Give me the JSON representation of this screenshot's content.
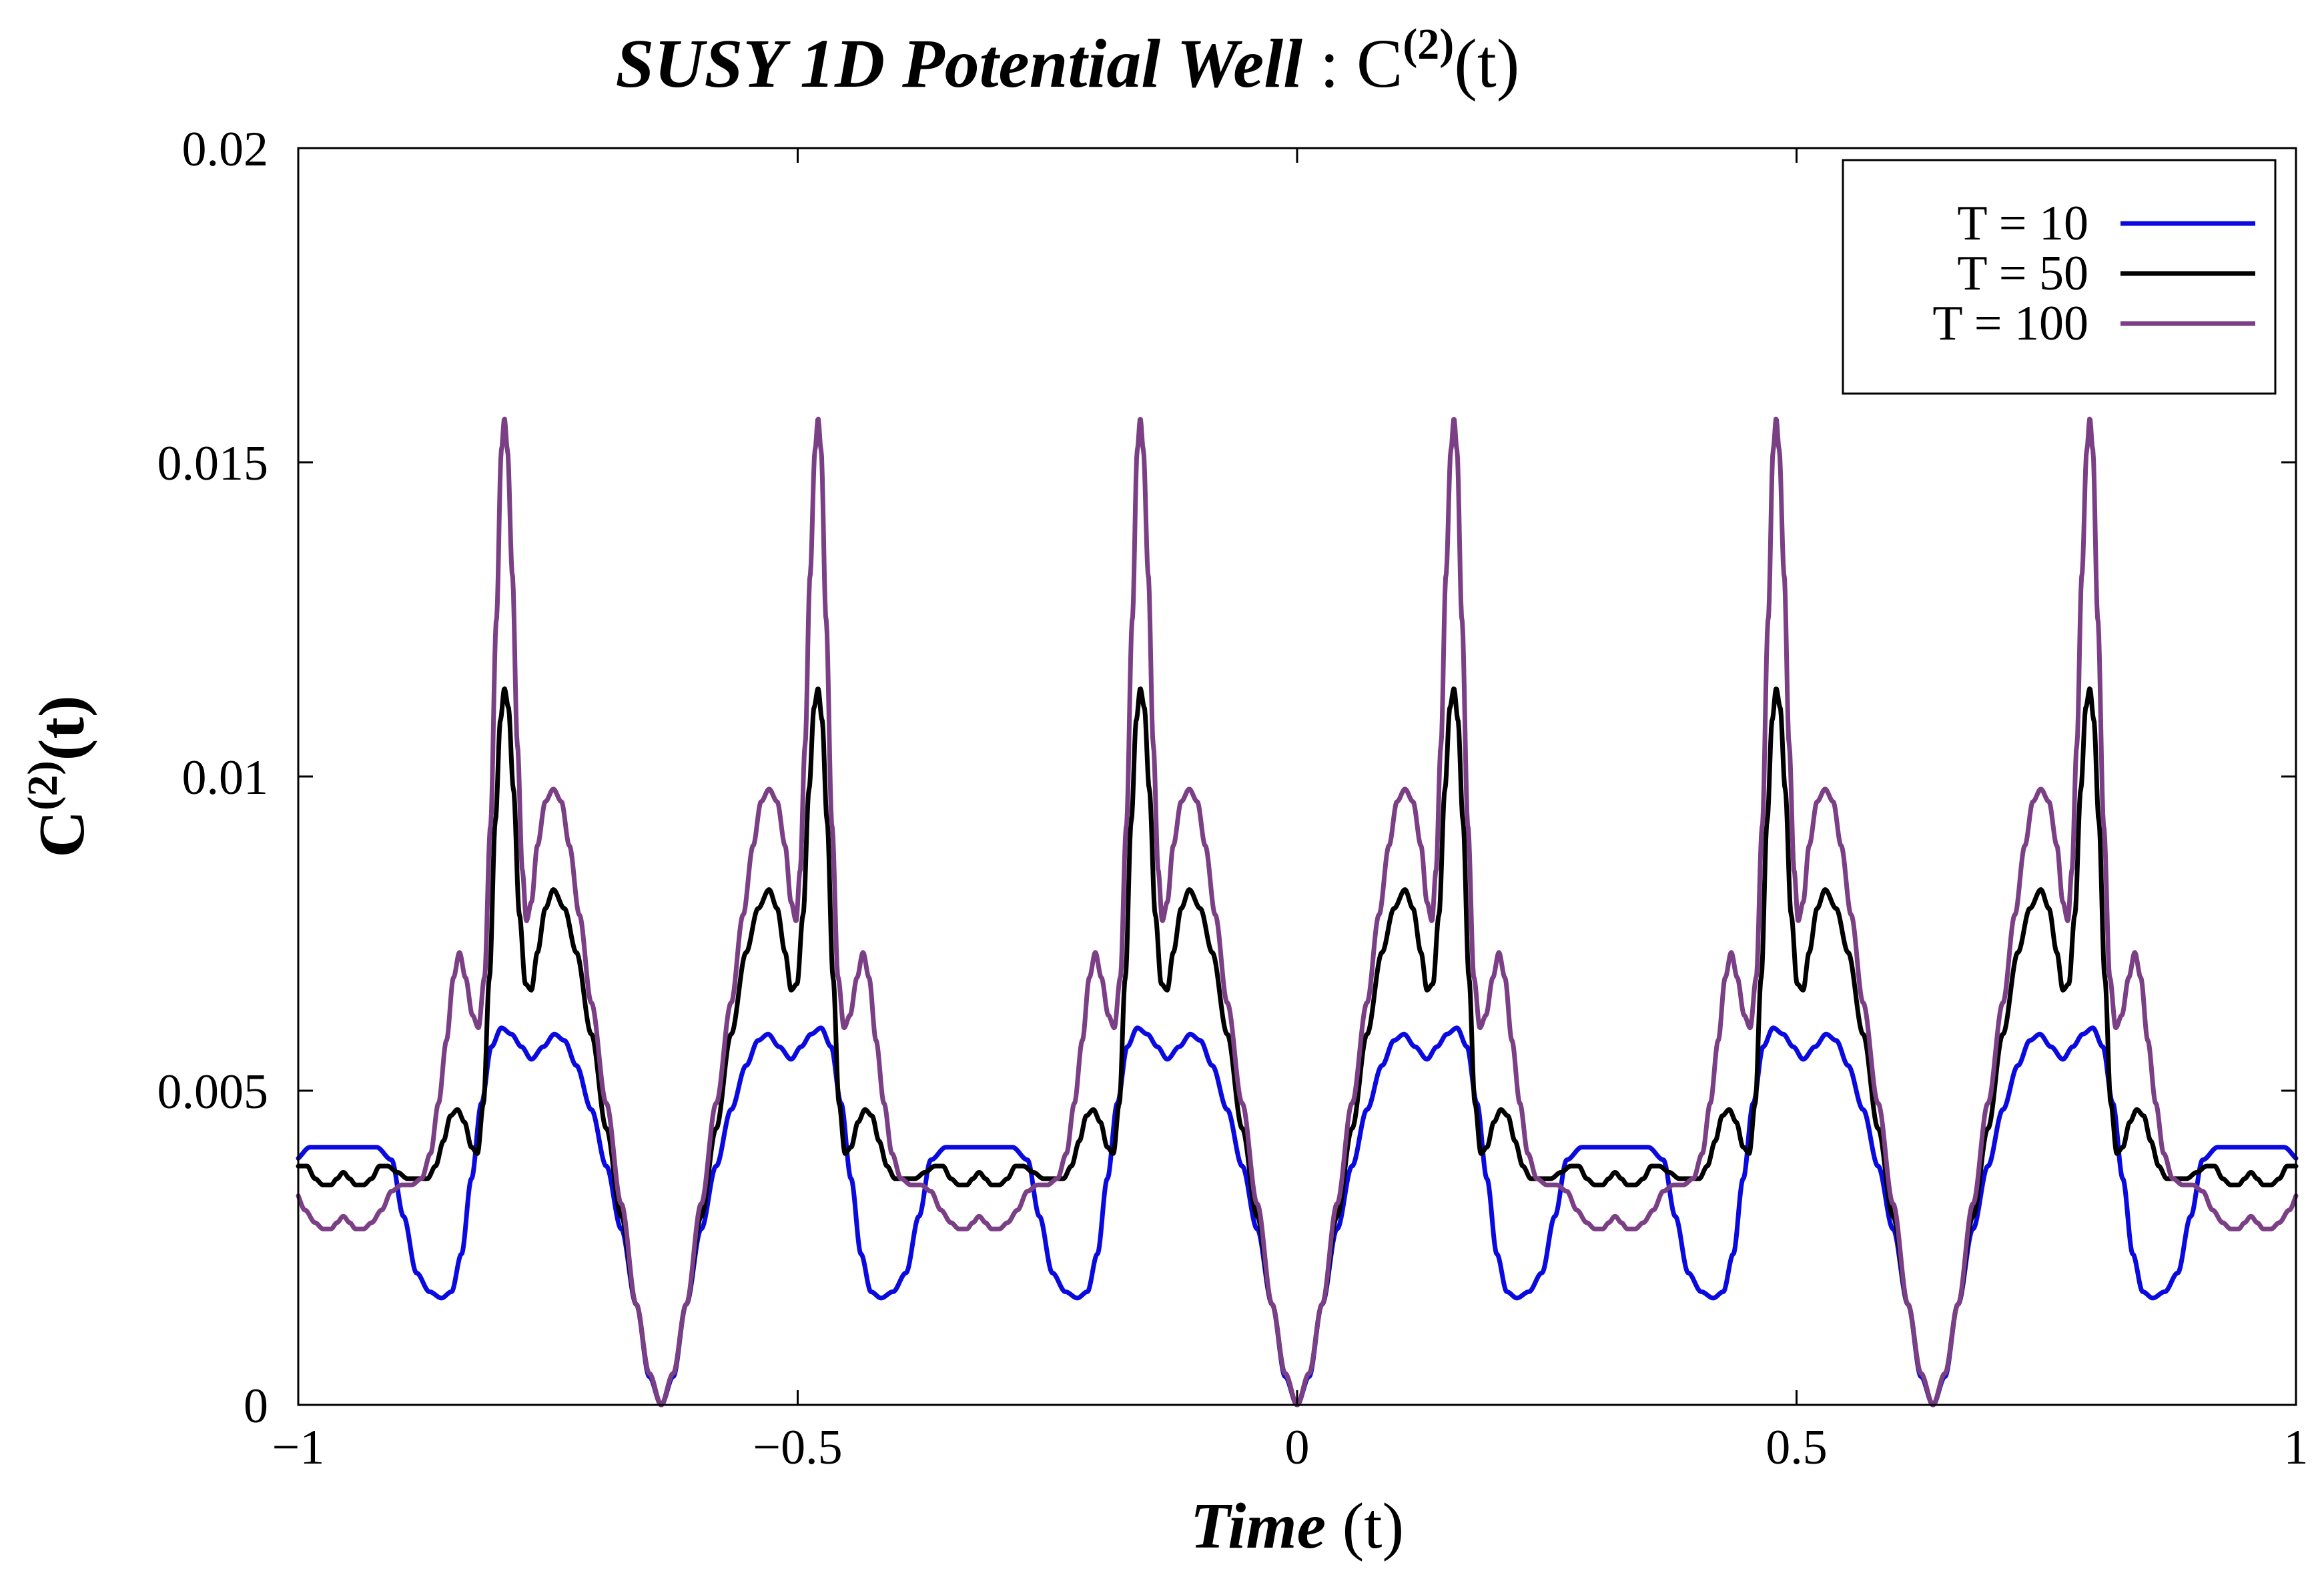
{
  "chart_data": {
    "type": "line",
    "title": {
      "italic": "SUSY 1D Potential Well",
      "sep": " : ",
      "base": "C",
      "sup": "(2)",
      "tail": "(t)"
    },
    "xlabel": {
      "italic": "Time",
      "tail": " (t)"
    },
    "ylabel": {
      "base": "C",
      "sup": "(2)",
      "tail": "(t)"
    },
    "xlim": [
      -1,
      1
    ],
    "ylim": [
      0,
      0.02
    ],
    "xticks": [
      {
        "value": -1,
        "label": "−1"
      },
      {
        "value": -0.5,
        "label": "−0.5"
      },
      {
        "value": 0,
        "label": "0"
      },
      {
        "value": 0.5,
        "label": "0.5"
      },
      {
        "value": 1,
        "label": "1"
      }
    ],
    "yticks": [
      {
        "value": 0,
        "label": "0"
      },
      {
        "value": 0.005,
        "label": "0.005"
      },
      {
        "value": 0.01,
        "label": "0.01"
      },
      {
        "value": 0.015,
        "label": "0.015"
      },
      {
        "value": 0.02,
        "label": "0.02"
      }
    ],
    "grid": false,
    "legend_position": "top-right",
    "period": 0.6366,
    "series": [
      {
        "name": "T = 10",
        "color": "#0a0ae0",
        "points": [
          [
            0,
            0
          ],
          [
            0.012,
            0.00045
          ],
          [
            0.025,
            0.0016
          ],
          [
            0.04,
            0.0028
          ],
          [
            0.055,
            0.0038
          ],
          [
            0.07,
            0.0047
          ],
          [
            0.085,
            0.0054
          ],
          [
            0.097,
            0.0058
          ],
          [
            0.107,
            0.0059
          ],
          [
            0.118,
            0.0057
          ],
          [
            0.13,
            0.0055
          ],
          [
            0.14,
            0.0057
          ],
          [
            0.15,
            0.0059
          ],
          [
            0.16,
            0.006
          ],
          [
            0.17,
            0.0057
          ],
          [
            0.18,
            0.0048
          ],
          [
            0.19,
            0.0036
          ],
          [
            0.2,
            0.0024
          ],
          [
            0.21,
            0.0018
          ],
          [
            0.22,
            0.0017
          ],
          [
            0.232,
            0.0018
          ],
          [
            0.245,
            0.0021
          ],
          [
            0.258,
            0.003
          ],
          [
            0.27,
            0.0039
          ],
          [
            0.285,
            0.0041
          ],
          [
            0.3,
            0.0041
          ],
          [
            0.318,
            0.0041
          ]
        ]
      },
      {
        "name": "T = 50",
        "color": "#000000",
        "points": [
          [
            0,
            0
          ],
          [
            0.012,
            0.0005
          ],
          [
            0.025,
            0.0016
          ],
          [
            0.04,
            0.003
          ],
          [
            0.055,
            0.0044
          ],
          [
            0.07,
            0.0059
          ],
          [
            0.085,
            0.0072
          ],
          [
            0.097,
            0.0079
          ],
          [
            0.108,
            0.0082
          ],
          [
            0.116,
            0.0079
          ],
          [
            0.124,
            0.0072
          ],
          [
            0.13,
            0.0066
          ],
          [
            0.136,
            0.0067
          ],
          [
            0.142,
            0.0078
          ],
          [
            0.148,
            0.0098
          ],
          [
            0.153,
            0.0111
          ],
          [
            0.157,
            0.0114
          ],
          [
            0.161,
            0.0109
          ],
          [
            0.166,
            0.0093
          ],
          [
            0.172,
            0.0068
          ],
          [
            0.178,
            0.0048
          ],
          [
            0.184,
            0.004
          ],
          [
            0.19,
            0.0041
          ],
          [
            0.197,
            0.0045
          ],
          [
            0.204,
            0.0047
          ],
          [
            0.211,
            0.0046
          ],
          [
            0.218,
            0.0042
          ],
          [
            0.226,
            0.0038
          ],
          [
            0.234,
            0.0036
          ],
          [
            0.244,
            0.0036
          ],
          [
            0.254,
            0.0036
          ],
          [
            0.264,
            0.0037
          ],
          [
            0.274,
            0.0038
          ],
          [
            0.282,
            0.0038
          ],
          [
            0.29,
            0.0036
          ],
          [
            0.298,
            0.0035
          ],
          [
            0.306,
            0.0035
          ],
          [
            0.312,
            0.0036
          ],
          [
            0.318,
            0.0037
          ]
        ]
      },
      {
        "name": "T = 100",
        "color": "#7b3f85",
        "points": [
          [
            0,
            0
          ],
          [
            0.012,
            0.0005
          ],
          [
            0.025,
            0.0016
          ],
          [
            0.04,
            0.0032
          ],
          [
            0.055,
            0.0048
          ],
          [
            0.07,
            0.0064
          ],
          [
            0.082,
            0.0078
          ],
          [
            0.092,
            0.0089
          ],
          [
            0.1,
            0.0096
          ],
          [
            0.108,
            0.0098
          ],
          [
            0.116,
            0.0096
          ],
          [
            0.124,
            0.0089
          ],
          [
            0.13,
            0.008
          ],
          [
            0.135,
            0.0077
          ],
          [
            0.139,
            0.0085
          ],
          [
            0.144,
            0.0105
          ],
          [
            0.149,
            0.0132
          ],
          [
            0.154,
            0.0152
          ],
          [
            0.157,
            0.0157
          ],
          [
            0.16,
            0.0152
          ],
          [
            0.165,
            0.0125
          ],
          [
            0.171,
            0.0092
          ],
          [
            0.177,
            0.0068
          ],
          [
            0.183,
            0.006
          ],
          [
            0.189,
            0.0062
          ],
          [
            0.196,
            0.0068
          ],
          [
            0.202,
            0.0072
          ],
          [
            0.208,
            0.0068
          ],
          [
            0.215,
            0.0058
          ],
          [
            0.223,
            0.0048
          ],
          [
            0.231,
            0.004
          ],
          [
            0.24,
            0.0036
          ],
          [
            0.25,
            0.0035
          ],
          [
            0.26,
            0.0035
          ],
          [
            0.27,
            0.0034
          ],
          [
            0.28,
            0.0031
          ],
          [
            0.29,
            0.0029
          ],
          [
            0.298,
            0.0028
          ],
          [
            0.306,
            0.0028
          ],
          [
            0.312,
            0.0029
          ],
          [
            0.318,
            0.003
          ]
        ]
      }
    ]
  }
}
